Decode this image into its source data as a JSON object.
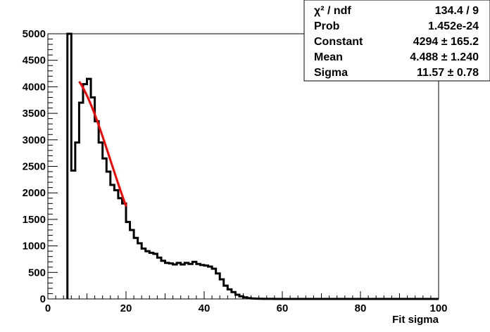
{
  "chart_data": {
    "type": "histogram",
    "xlabel": "Fit sigma",
    "ylabel": "",
    "xlim": [
      0,
      100
    ],
    "ylim": [
      0,
      5000
    ],
    "x_ticks": [
      0,
      20,
      40,
      60,
      80,
      100
    ],
    "y_ticks": [
      0,
      500,
      1000,
      1500,
      2000,
      2500,
      3000,
      3500,
      4000,
      4500,
      5000
    ],
    "bin_width": 1,
    "bin_edges_start": 5,
    "counts": [
      5000,
      2420,
      2950,
      3700,
      4050,
      4150,
      3800,
      3350,
      2950,
      2650,
      2400,
      2150,
      2050,
      1900,
      1800,
      1450,
      1300,
      1150,
      1050,
      950,
      900,
      870,
      850,
      780,
      720,
      680,
      670,
      650,
      680,
      650,
      680,
      660,
      700,
      660,
      640,
      630,
      610,
      570,
      480,
      370,
      250,
      180,
      130,
      80,
      50,
      30,
      15,
      8,
      5,
      3,
      2,
      1,
      1,
      0,
      0,
      0,
      0,
      0,
      0,
      0,
      0,
      0,
      0,
      0,
      0,
      0,
      0,
      0,
      0,
      0,
      0,
      0,
      0,
      0,
      0,
      0,
      0,
      0,
      0,
      0,
      0,
      0,
      0,
      0,
      0,
      0,
      0,
      0,
      0,
      0,
      0,
      0,
      0,
      0,
      0
    ],
    "fit": {
      "function": "gaus",
      "constant": 4294,
      "mean": 4.488,
      "sigma": 11.57,
      "x_range": [
        8,
        20
      ],
      "color": "#ff0000"
    },
    "line_color": "#000000"
  },
  "stats_box": {
    "rows": [
      {
        "label": "χ² / ndf",
        "value": "134.4 / 9"
      },
      {
        "label": "Prob",
        "value": "1.452e-24"
      },
      {
        "label": "Constant",
        "value": "4294 ± 165.2"
      },
      {
        "label": "Mean",
        "value": "4.488 ± 1.240"
      },
      {
        "label": "Sigma",
        "value": "11.57 ± 0.78"
      }
    ]
  }
}
